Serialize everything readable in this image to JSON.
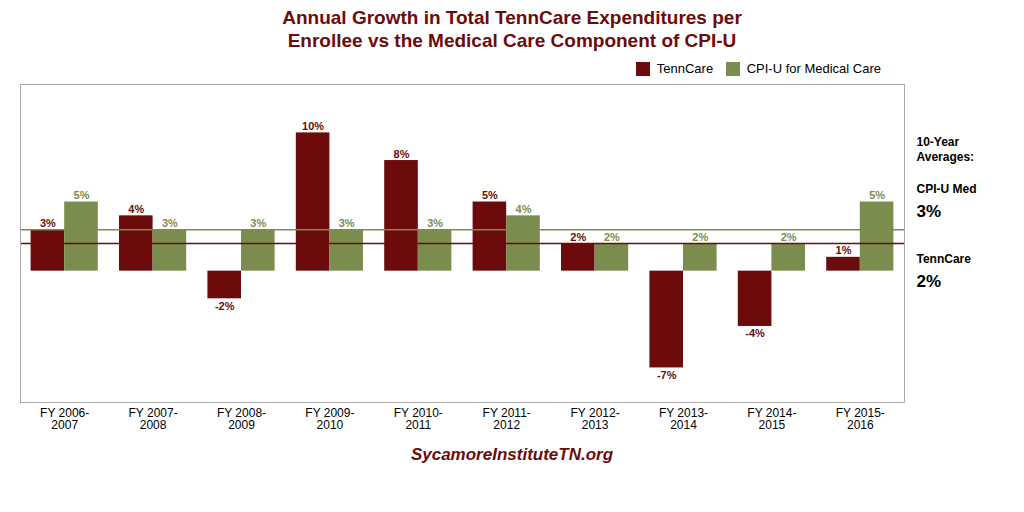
{
  "chart_data": {
    "type": "bar",
    "title": "Annual Growth in Total TennCare Expenditures per\nEnrollee vs the Medical Care Component of CPI-U",
    "caption": "SycamoreInstituteTN.org",
    "categories": [
      "FY 2006-\n2007",
      "FY 2007-\n2008",
      "FY 2008-\n2009",
      "FY 2009-\n2010",
      "FY 2010-\n2011",
      "FY 2011-\n2012",
      "FY 2012-\n2013",
      "FY 2013-\n2014",
      "FY 2014-\n2015",
      "FY 2015-\n2016"
    ],
    "series": [
      {
        "name": "TennCare",
        "color": "#6B0B0B",
        "values": [
          3,
          4,
          -2,
          10,
          8,
          5,
          2,
          -7,
          -4,
          1
        ],
        "value_labels": [
          "3%",
          "4%",
          "-2%",
          "10%",
          "8%",
          "5%",
          "2%",
          "-7%",
          "-4%",
          "1%"
        ]
      },
      {
        "name": "CPI-U for Medical Care",
        "color": "#7A8C4E",
        "values": [
          5,
          3,
          3,
          3,
          3,
          4,
          2,
          2,
          2,
          5
        ],
        "value_labels": [
          "5%",
          "3%",
          "3%",
          "3%",
          "3%",
          "4%",
          "2%",
          "2%",
          "2%",
          "5%"
        ]
      }
    ],
    "averages_title": "10-Year\nAverages:",
    "averages": [
      {
        "name": "CPI-U Med",
        "series": "CPI-U for Medical Care",
        "value": 3,
        "label": "3%"
      },
      {
        "name": "TennCare",
        "series": "TennCare",
        "value": 2,
        "label": "2%"
      }
    ],
    "ylim": [
      -9.5,
      13.5
    ],
    "grid": false,
    "legend": "upper right",
    "data_labels": true,
    "tick_labels": "x"
  }
}
